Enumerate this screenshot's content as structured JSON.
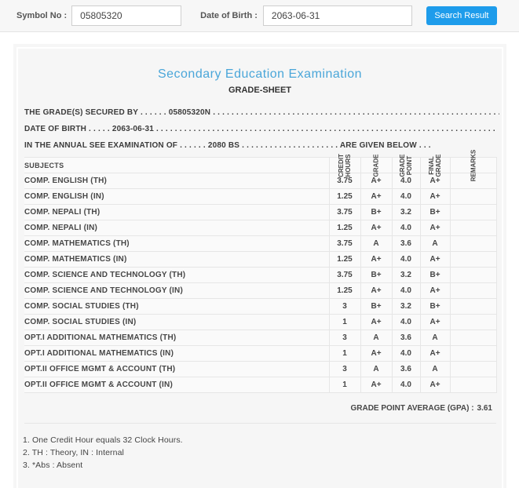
{
  "search_bar": {
    "symbol_label": "Symbol No :",
    "symbol_value": "05805320",
    "dob_label": "Date of Birth :",
    "dob_value": "2063-06-31",
    "button_label": "Search Result",
    "button_color": "#1e9ceb"
  },
  "sheet": {
    "title": "Secondary Education Examination",
    "title_color": "#4aa6d9",
    "subtitle": "GRADE-SHEET",
    "statements": [
      {
        "prefix": "THE GRADE(S) SECURED BY",
        "dots_before": " . . . . . . ",
        "value": "05805320N",
        "dots_after": " . . . . . . . . . . . . . . . . . . . . . . . . . . . . . . . . . . . . . . . . . . . . . . . . . . . . . . . . . . . . . . . . . . . .",
        "suffix": ""
      },
      {
        "prefix": "DATE OF BIRTH",
        "dots_before": " . . . . . ",
        "value": "2063-06-31",
        "dots_after": " . . . . . . . . . . . . . . . . . . . . . . . . . . . . . . . . . . . . . . . . . . . . . . . . . . . . . . . . . . . . . . . . . . . . . . . . .",
        "suffix": ""
      },
      {
        "prefix": "IN THE ANNUAL SEE EXAMINATION OF",
        "dots_before": " . . . . . . ",
        "value": "2080 BS",
        "dots_after": " . . . . . . . . . . . . . . . . . . . . . ",
        "suffix": "ARE GIVEN BELOW . . ."
      }
    ],
    "columns": [
      "SUBJECTS",
      "CREDIT\nHOURS",
      "GRADE",
      "GRADE\nPOINT",
      "FINAL\nGRADE",
      "REMARKS"
    ],
    "rows": [
      {
        "subject": "COMP. ENGLISH (TH)",
        "credit_hours": "3.75",
        "grade": "A+",
        "grade_point": "4.0",
        "final_grade": "A+",
        "remarks": ""
      },
      {
        "subject": "COMP. ENGLISH (IN)",
        "credit_hours": "1.25",
        "grade": "A+",
        "grade_point": "4.0",
        "final_grade": "A+",
        "remarks": ""
      },
      {
        "subject": "COMP. NEPALI (TH)",
        "credit_hours": "3.75",
        "grade": "B+",
        "grade_point": "3.2",
        "final_grade": "B+",
        "remarks": ""
      },
      {
        "subject": "COMP. NEPALI (IN)",
        "credit_hours": "1.25",
        "grade": "A+",
        "grade_point": "4.0",
        "final_grade": "A+",
        "remarks": ""
      },
      {
        "subject": "COMP. MATHEMATICS (TH)",
        "credit_hours": "3.75",
        "grade": "A",
        "grade_point": "3.6",
        "final_grade": "A",
        "remarks": ""
      },
      {
        "subject": "COMP. MATHEMATICS (IN)",
        "credit_hours": "1.25",
        "grade": "A+",
        "grade_point": "4.0",
        "final_grade": "A+",
        "remarks": ""
      },
      {
        "subject": "COMP. SCIENCE AND TECHNOLOGY (TH)",
        "credit_hours": "3.75",
        "grade": "B+",
        "grade_point": "3.2",
        "final_grade": "B+",
        "remarks": ""
      },
      {
        "subject": "COMP. SCIENCE AND TECHNOLOGY (IN)",
        "credit_hours": "1.25",
        "grade": "A+",
        "grade_point": "4.0",
        "final_grade": "A+",
        "remarks": ""
      },
      {
        "subject": "COMP. SOCIAL STUDIES (TH)",
        "credit_hours": "3",
        "grade": "B+",
        "grade_point": "3.2",
        "final_grade": "B+",
        "remarks": ""
      },
      {
        "subject": "COMP. SOCIAL STUDIES (IN)",
        "credit_hours": "1",
        "grade": "A+",
        "grade_point": "4.0",
        "final_grade": "A+",
        "remarks": ""
      },
      {
        "subject": "OPT.I ADDITIONAL MATHEMATICS (TH)",
        "credit_hours": "3",
        "grade": "A",
        "grade_point": "3.6",
        "final_grade": "A",
        "remarks": ""
      },
      {
        "subject": "OPT.I ADDITIONAL MATHEMATICS (IN)",
        "credit_hours": "1",
        "grade": "A+",
        "grade_point": "4.0",
        "final_grade": "A+",
        "remarks": ""
      },
      {
        "subject": "OPT.II OFFICE MGMT & ACCOUNT (TH)",
        "credit_hours": "3",
        "grade": "A",
        "grade_point": "3.6",
        "final_grade": "A",
        "remarks": ""
      },
      {
        "subject": "OPT.II OFFICE MGMT & ACCOUNT (IN)",
        "credit_hours": "1",
        "grade": "A+",
        "grade_point": "4.0",
        "final_grade": "A+",
        "remarks": ""
      }
    ],
    "gpa_label": "GRADE POINT AVERAGE (GPA) :",
    "gpa_value": "3.61",
    "notes": [
      "1. One Credit Hour equals 32 Clock Hours.",
      "2. TH : Theory, IN : Internal",
      "3. *Abs : Absent"
    ]
  }
}
